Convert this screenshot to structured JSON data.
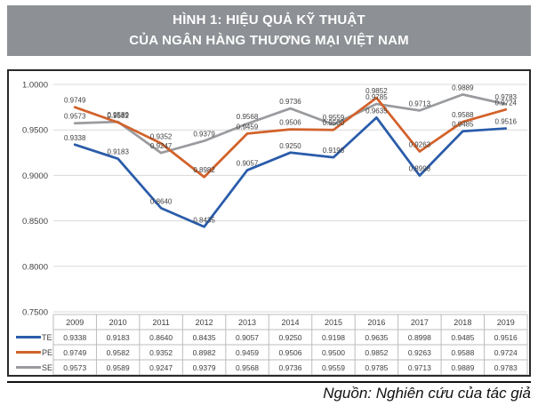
{
  "title": {
    "line1": "HÌNH 1: HIỆU QUẢ KỸ THUẬT",
    "line2": "CỦA NGÂN HÀNG THƯƠNG MẠI VIỆT NAM"
  },
  "footer": {
    "source": "Nguồn: Nghiên cứu của tác giả"
  },
  "chart_data": {
    "type": "line",
    "title": "HÌNH 1: HIỆU QUẢ KỸ THUẬT CỦA NGÂN HÀNG THƯƠNG MẠI VIỆT NAM",
    "categories": [
      "2009",
      "2010",
      "2011",
      "2012",
      "2013",
      "2014",
      "2015",
      "2016",
      "2017",
      "2018",
      "2019"
    ],
    "series": [
      {
        "name": "TE",
        "color": "#2a5caa",
        "values": [
          0.9338,
          0.9183,
          0.864,
          0.8435,
          0.9057,
          0.925,
          0.9198,
          0.9635,
          0.8998,
          0.9485,
          0.9516
        ]
      },
      {
        "name": "PE",
        "color": "#d2622b",
        "values": [
          0.9749,
          0.9582,
          0.9352,
          0.8982,
          0.9459,
          0.9506,
          0.95,
          0.9852,
          0.9263,
          0.9588,
          0.9724
        ]
      },
      {
        "name": "SE",
        "color": "#999b9e",
        "values": [
          0.9573,
          0.9589,
          0.9247,
          0.9379,
          0.9568,
          0.9736,
          0.9559,
          0.9785,
          0.9713,
          0.9889,
          0.9783
        ]
      }
    ],
    "ylim": [
      0.75,
      1.0
    ],
    "yticks": [
      "1.0000",
      "0.9500",
      "0.9000",
      "0.8500",
      "0.8000",
      "0.7500"
    ],
    "ytick_values": [
      1.0,
      0.95,
      0.9,
      0.85,
      0.8,
      0.75
    ],
    "value_decimals": 4,
    "grid": true,
    "data_labels": true,
    "legend_position": "table-left",
    "styles": {
      "grid_color": "#d9d9d9",
      "table_border_color": "#bdbdbd",
      "text_color": "#3f3f3f",
      "label_color": "#404040"
    }
  }
}
